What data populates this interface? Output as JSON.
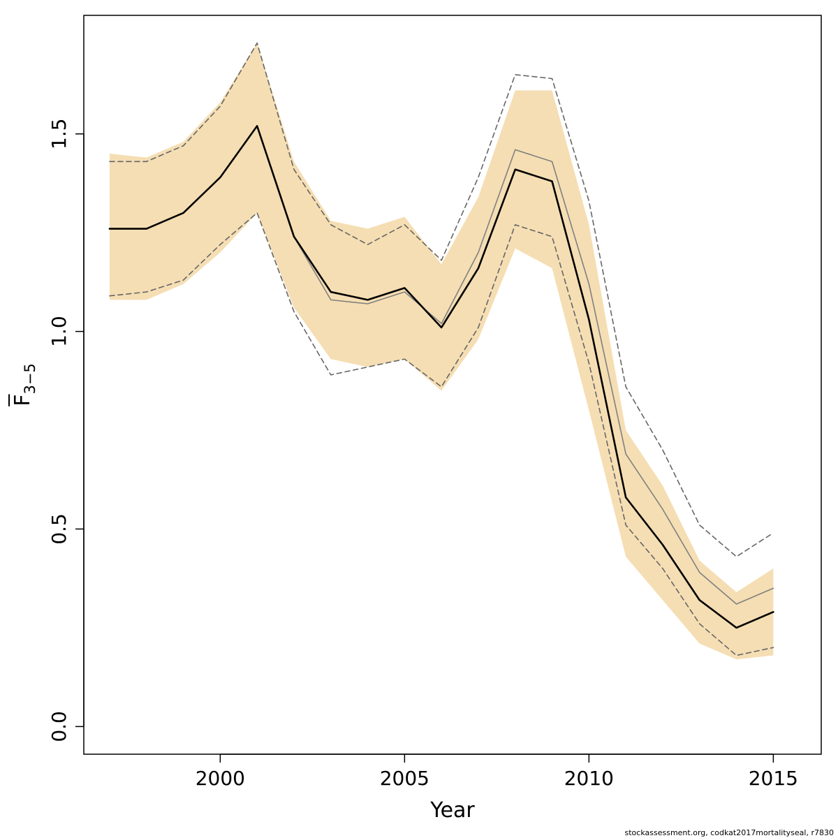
{
  "chart_data": {
    "type": "line",
    "xlabel": "Year",
    "ylabel": {
      "base": "F",
      "subscript": "3−5"
    },
    "xlim": [
      1996.3,
      2016.3
    ],
    "ylim": [
      -0.07,
      1.8
    ],
    "xticks": [
      2000,
      2005,
      2010,
      2015
    ],
    "yticks": [
      0.0,
      0.5,
      1.0,
      1.5
    ],
    "xtick_labels": [
      "2000",
      "2005",
      "2010",
      "2015"
    ],
    "ytick_labels": [
      "0.0",
      "0.5",
      "1.0",
      "1.5"
    ],
    "x": [
      1997,
      1998,
      1999,
      2000,
      2001,
      2002,
      2003,
      2004,
      2005,
      2006,
      2007,
      2008,
      2009,
      2010,
      2011,
      2012,
      2013,
      2014,
      2015
    ],
    "series": [
      {
        "style": "band",
        "color": "#f5deb3",
        "upper": [
          1.45,
          1.44,
          1.48,
          1.58,
          1.73,
          1.43,
          1.28,
          1.26,
          1.29,
          1.17,
          1.34,
          1.61,
          1.61,
          1.27,
          0.75,
          0.61,
          0.42,
          0.34,
          0.4
        ],
        "lower": [
          1.08,
          1.08,
          1.12,
          1.2,
          1.3,
          1.06,
          0.93,
          0.91,
          0.93,
          0.85,
          0.98,
          1.21,
          1.16,
          0.8,
          0.43,
          0.32,
          0.21,
          0.17,
          0.18
        ]
      },
      {
        "style": "dashed",
        "color": "#666666",
        "values": [
          1.43,
          1.43,
          1.47,
          1.57,
          1.73,
          1.41,
          1.27,
          1.22,
          1.27,
          1.18,
          1.39,
          1.65,
          1.64,
          1.33,
          0.86,
          0.7,
          0.51,
          0.43,
          0.49
        ]
      },
      {
        "style": "dashed",
        "color": "#666666",
        "values": [
          1.09,
          1.1,
          1.13,
          1.22,
          1.3,
          1.05,
          0.89,
          0.91,
          0.93,
          0.86,
          1.01,
          1.27,
          1.24,
          0.92,
          0.51,
          0.4,
          0.26,
          0.18,
          0.2
        ]
      },
      {
        "style": "thin",
        "color": "#808080",
        "values": [
          1.26,
          1.26,
          1.3,
          1.39,
          1.52,
          1.24,
          1.08,
          1.07,
          1.1,
          1.02,
          1.2,
          1.46,
          1.43,
          1.12,
          0.69,
          0.55,
          0.39,
          0.31,
          0.35
        ]
      },
      {
        "style": "thick",
        "color": "#000000",
        "values": [
          1.26,
          1.26,
          1.3,
          1.39,
          1.52,
          1.24,
          1.1,
          1.08,
          1.11,
          1.01,
          1.16,
          1.41,
          1.38,
          1.03,
          0.58,
          0.46,
          0.32,
          0.25,
          0.29
        ]
      }
    ]
  },
  "footer": "stockassessment.org, codkat2017mortalityseal, r7830"
}
